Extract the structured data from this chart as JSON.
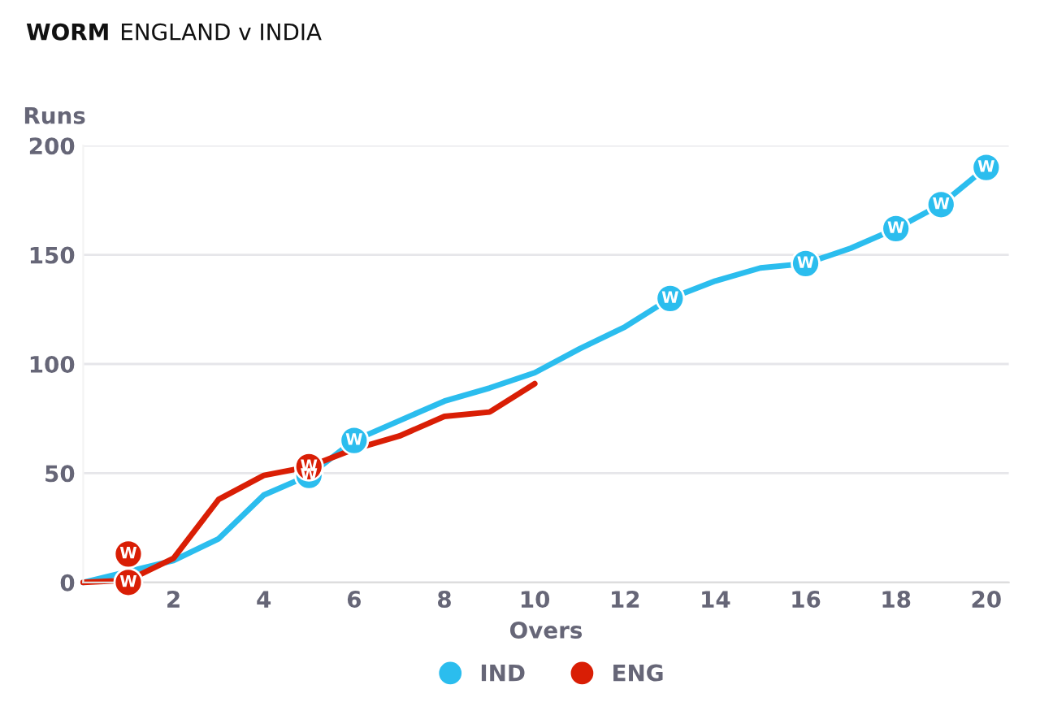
{
  "chart_data": {
    "type": "line",
    "title": "WORM",
    "subtitle": "ENGLAND v INDIA",
    "xlabel": "Overs",
    "ylabel": "Runs",
    "series": [
      {
        "name": "IND",
        "color": "#2bbdee",
        "x": [
          0,
          2,
          3,
          4,
          5,
          6,
          7,
          8,
          9,
          10,
          11,
          12,
          13,
          14,
          15,
          16,
          17,
          18,
          19,
          20
        ],
        "values": [
          0,
          10,
          20,
          40,
          49,
          65,
          74,
          83,
          89,
          96,
          107,
          117,
          130,
          138,
          144,
          146,
          153,
          162,
          173,
          190
        ]
      },
      {
        "name": "ENG",
        "color": "#d91e05",
        "x": [
          0,
          1,
          2,
          3,
          4,
          5,
          6,
          7,
          8,
          9,
          10
        ],
        "values": [
          0,
          1,
          11,
          38,
          49,
          53,
          61,
          67,
          76,
          78,
          91
        ]
      },
      {
        "type": "scatter",
        "color": "#2bbdee",
        "marker": "circle",
        "x": [
          5,
          6,
          13,
          16,
          18,
          19,
          20
        ],
        "values": [
          49,
          65,
          130,
          146,
          162,
          173,
          190
        ],
        "value_labels": [
          "W",
          "W",
          "W",
          "W",
          "W",
          "W",
          "W"
        ]
      },
      {
        "type": "scatter",
        "color": "#d91e05",
        "marker": "circle",
        "x": [
          1,
          1,
          5
        ],
        "values": [
          0,
          13,
          53
        ],
        "value_labels": [
          "W",
          "W",
          "W"
        ]
      }
    ],
    "xlim": [
      0,
      20.5
    ],
    "xticks": [
      2,
      4,
      6,
      8,
      10,
      12,
      14,
      16,
      18,
      20
    ],
    "ylim": [
      0,
      200
    ],
    "yticks": [
      0,
      50,
      100,
      150,
      200
    ],
    "grid": "y",
    "legend": "bottom"
  }
}
